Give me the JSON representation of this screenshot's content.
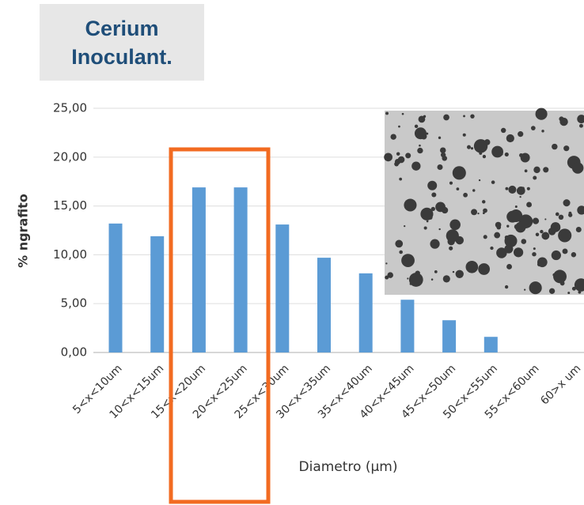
{
  "chart_data": {
    "type": "bar",
    "title": "Cerium Inoculant.",
    "y_label": "% ngrafito",
    "x_label": "Diametro (µm)",
    "categories": [
      "5<x<10um",
      "10<x<15um",
      "15<x<20um",
      "20<x<25um",
      "25<x<30um",
      "30<x<35um",
      "35<x<40um",
      "40<x<45um",
      "45<x<50um",
      "50<x<55um",
      "55<x<60um",
      "60>x um"
    ],
    "values": [
      13.2,
      11.9,
      16.9,
      16.9,
      13.1,
      9.7,
      8.1,
      5.4,
      3.3,
      1.6,
      0,
      0
    ],
    "color": "#5b9bd5",
    "ylim": [
      0,
      25
    ],
    "yticks": [
      {
        "value": 0,
        "label": "0,00"
      },
      {
        "value": 5,
        "label": "5,00"
      },
      {
        "value": 10,
        "label": "10,00"
      },
      {
        "value": 15,
        "label": "15,00"
      },
      {
        "value": 20,
        "label": "20,00"
      },
      {
        "value": 25,
        "label": "25,00"
      }
    ],
    "grid": true
  }
}
